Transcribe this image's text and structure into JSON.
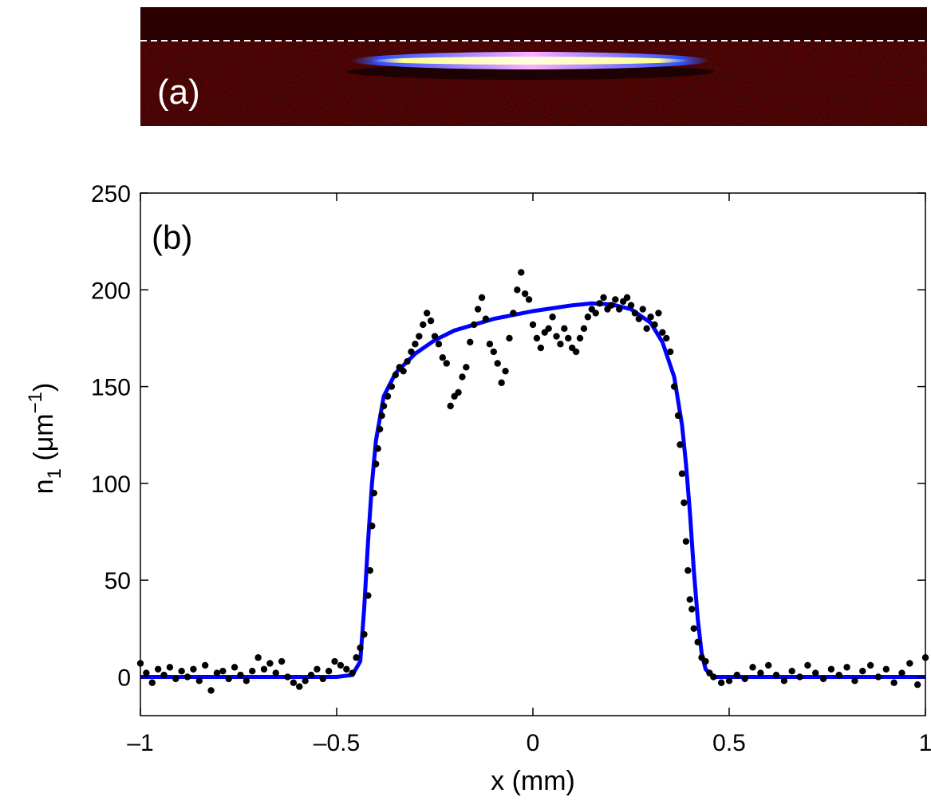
{
  "image": {
    "label": "(a)"
  },
  "chart_data": {
    "type": "scatter",
    "annotation": "(b)",
    "xlabel": "x (mm)",
    "ylabel": {
      "base": "n",
      "sub": "1",
      "open": " (μm",
      "sup": "−1",
      "close": ")"
    },
    "xlim": [
      -1,
      1
    ],
    "ylim": [
      -20,
      250
    ],
    "xticks": [
      {
        "value": -1,
        "label": "–1"
      },
      {
        "value": -0.5,
        "label": "–0.5"
      },
      0,
      0.5,
      1
    ],
    "yticks": [
      0,
      50,
      100,
      150,
      200,
      250
    ],
    "grid": false,
    "series": [
      {
        "type": "scatter",
        "color": "#000000",
        "x": [
          -1,
          -0.985,
          -0.97,
          -0.955,
          -0.94,
          -0.925,
          -0.91,
          -0.895,
          -0.88,
          -0.865,
          -0.85,
          -0.835,
          -0.82,
          -0.805,
          -0.79,
          -0.775,
          -0.76,
          -0.745,
          -0.73,
          -0.715,
          -0.7,
          -0.685,
          -0.67,
          -0.655,
          -0.64,
          -0.625,
          -0.61,
          -0.595,
          -0.58,
          -0.565,
          -0.55,
          -0.535,
          -0.52,
          -0.505,
          -0.49,
          -0.475,
          -0.46,
          -0.45,
          -0.44,
          -0.43,
          -0.42,
          -0.415,
          -0.41,
          -0.405,
          -0.4,
          -0.395,
          -0.39,
          -0.385,
          -0.38,
          -0.37,
          -0.36,
          -0.35,
          -0.34,
          -0.33,
          -0.32,
          -0.31,
          -0.3,
          -0.29,
          -0.28,
          -0.27,
          -0.26,
          -0.25,
          -0.24,
          -0.23,
          -0.22,
          -0.21,
          -0.2,
          -0.19,
          -0.18,
          -0.17,
          -0.16,
          -0.15,
          -0.14,
          -0.13,
          -0.12,
          -0.11,
          -0.1,
          -0.09,
          -0.08,
          -0.07,
          -0.06,
          -0.05,
          -0.04,
          -0.03,
          -0.02,
          -0.01,
          0,
          0.01,
          0.02,
          0.03,
          0.04,
          0.05,
          0.06,
          0.07,
          0.08,
          0.09,
          0.1,
          0.11,
          0.12,
          0.13,
          0.14,
          0.15,
          0.16,
          0.17,
          0.18,
          0.19,
          0.2,
          0.21,
          0.22,
          0.23,
          0.24,
          0.25,
          0.26,
          0.27,
          0.28,
          0.29,
          0.3,
          0.31,
          0.32,
          0.33,
          0.34,
          0.35,
          0.36,
          0.37,
          0.375,
          0.38,
          0.385,
          0.39,
          0.395,
          0.4,
          0.405,
          0.41,
          0.42,
          0.43,
          0.44,
          0.45,
          0.46,
          0.48,
          0.5,
          0.52,
          0.54,
          0.56,
          0.58,
          0.6,
          0.62,
          0.64,
          0.66,
          0.68,
          0.7,
          0.72,
          0.74,
          0.76,
          0.78,
          0.8,
          0.82,
          0.84,
          0.86,
          0.88,
          0.9,
          0.92,
          0.94,
          0.96,
          0.98,
          1
        ],
        "values": [
          7,
          2,
          -3,
          4,
          1,
          5,
          -1,
          3,
          0,
          4,
          -2,
          6,
          -7,
          2,
          3,
          -1,
          5,
          1,
          -2,
          3,
          10,
          4,
          7,
          2,
          8,
          0,
          -3,
          -5,
          -2,
          1,
          4,
          -1,
          3,
          8,
          6,
          4,
          2,
          10,
          15,
          22,
          42,
          55,
          78,
          95,
          110,
          118,
          128,
          135,
          140,
          145,
          150,
          156,
          160,
          158,
          163,
          168,
          172,
          176,
          182,
          188,
          184,
          176,
          172,
          165,
          162,
          140,
          145,
          147,
          155,
          160,
          173,
          182,
          190,
          196,
          185,
          172,
          168,
          162,
          152,
          158,
          175,
          188,
          200,
          209,
          198,
          195,
          182,
          175,
          170,
          178,
          180,
          186,
          176,
          172,
          180,
          175,
          170,
          168,
          175,
          180,
          186,
          190,
          188,
          193,
          196,
          190,
          192,
          195,
          190,
          194,
          196,
          192,
          188,
          185,
          190,
          180,
          186,
          182,
          188,
          178,
          175,
          168,
          150,
          135,
          120,
          105,
          90,
          70,
          55,
          40,
          35,
          25,
          18,
          10,
          8,
          2,
          0,
          -3,
          -2,
          1,
          -1,
          5,
          2,
          6,
          1,
          -2,
          3,
          0,
          6,
          2,
          -1,
          4,
          1,
          5,
          -2,
          3,
          6,
          0,
          4,
          -3,
          2,
          7,
          -4,
          10
        ]
      },
      {
        "type": "line",
        "color": "#0000ff",
        "x": [
          -1,
          -0.5,
          -0.46,
          -0.44,
          -0.43,
          -0.42,
          -0.41,
          -0.4,
          -0.38,
          -0.35,
          -0.3,
          -0.25,
          -0.2,
          -0.1,
          0,
          0.1,
          0.15,
          0.2,
          0.25,
          0.3,
          0.33,
          0.36,
          0.38,
          0.39,
          0.4,
          0.41,
          0.42,
          0.43,
          0.44,
          0.46,
          1
        ],
        "values": [
          0,
          0,
          1,
          8,
          35,
          70,
          100,
          122,
          145,
          157,
          167,
          174,
          179,
          185,
          189,
          192,
          193,
          192.5,
          190,
          183,
          173,
          155,
          130,
          110,
          85,
          55,
          30,
          12,
          4,
          0,
          0
        ]
      }
    ]
  }
}
